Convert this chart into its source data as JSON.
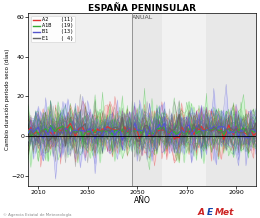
{
  "title": "ESPAÑA PENINSULAR",
  "subtitle": "ANUAL",
  "xlabel": "AÑO",
  "ylabel": "Cambio duración periodo seco (días)",
  "xlim": [
    2006,
    2098
  ],
  "ylim": [
    -25,
    62
  ],
  "yticks": [
    -20,
    0,
    20,
    40,
    60
  ],
  "xticks": [
    2010,
    2030,
    2050,
    2070,
    2090
  ],
  "x_split": 2048,
  "bg_left": "#f0f0f0",
  "bg_right1": "#e8e8e8",
  "bg_right2": "#f2f2f2",
  "bg_right3": "#e8e8e8",
  "vline_color": "#888888",
  "zero_line_color": "#000000",
  "series": [
    {
      "name": "A2",
      "count": 11,
      "color_line": "#dd3333",
      "color_shade": "#ffbbbb"
    },
    {
      "name": "A1B",
      "count": 19,
      "color_line": "#33aa33",
      "color_shade": "#bbffbb"
    },
    {
      "name": "B1",
      "count": 13,
      "color_line": "#5555cc",
      "color_shade": "#bbbbff"
    },
    {
      "name": "E1",
      "count": 4,
      "color_line": "#666666",
      "color_shade": "#cccccc"
    }
  ],
  "seed": 7
}
